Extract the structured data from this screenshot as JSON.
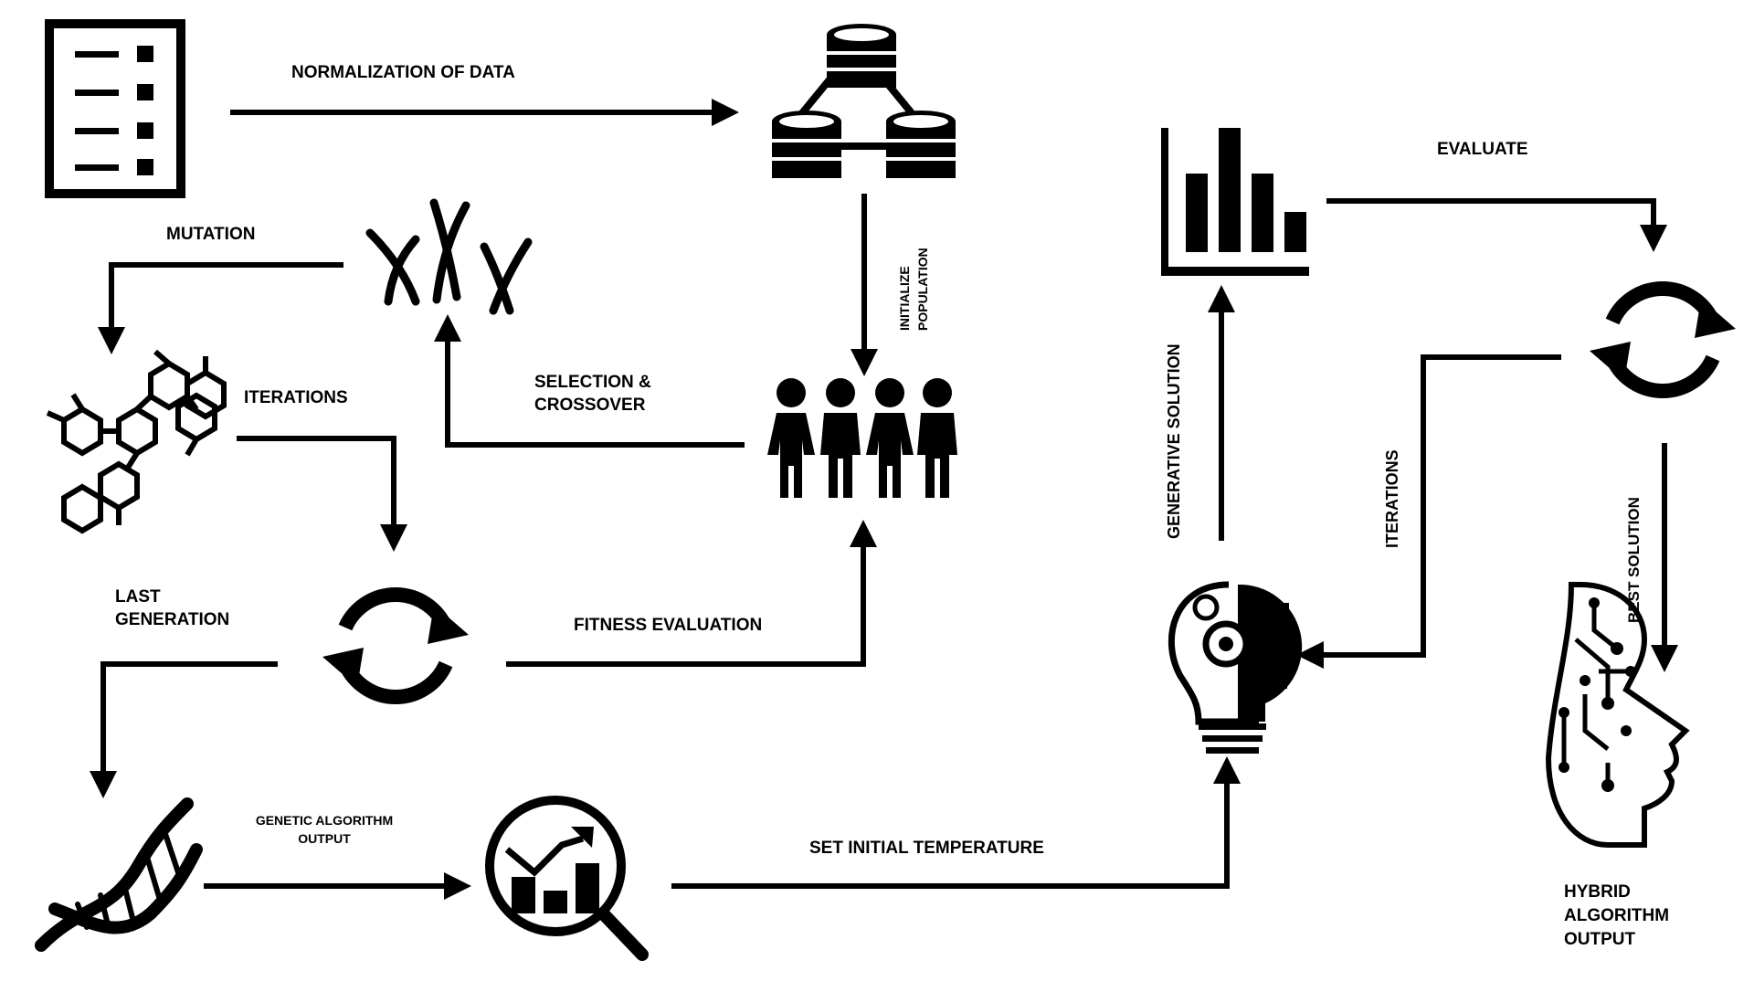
{
  "labels": {
    "normalization": "NORMALIZATION OF DATA",
    "mutation": "MUTATION",
    "iterations_left": "ITERATIONS",
    "selection_line1": "SELECTION &",
    "selection_line2": "CROSSOVER",
    "initialize_line1": "INITIALIZE",
    "initialize_line2": "POPULATION",
    "last_gen_line1": "LAST",
    "last_gen_line2": "GENERATION",
    "fitness": "FITNESS EVALUATION",
    "ga_output_line1": "GENETIC ALGORITHM",
    "ga_output_line2": "OUTPUT",
    "set_temperature": "SET INITIAL TEMPERATURE",
    "evaluate": "EVALUATE",
    "generative_solution": "GENERATIVE SOLUTION",
    "iterations_right": "ITERATIONS",
    "best_solution": "BEST SOLUTION",
    "hybrid_line1": "HYBRID",
    "hybrid_line2": "ALGORITHM",
    "hybrid_line3": "OUTPUT"
  },
  "colors": {
    "ink": "#000000",
    "background": "#ffffff"
  }
}
